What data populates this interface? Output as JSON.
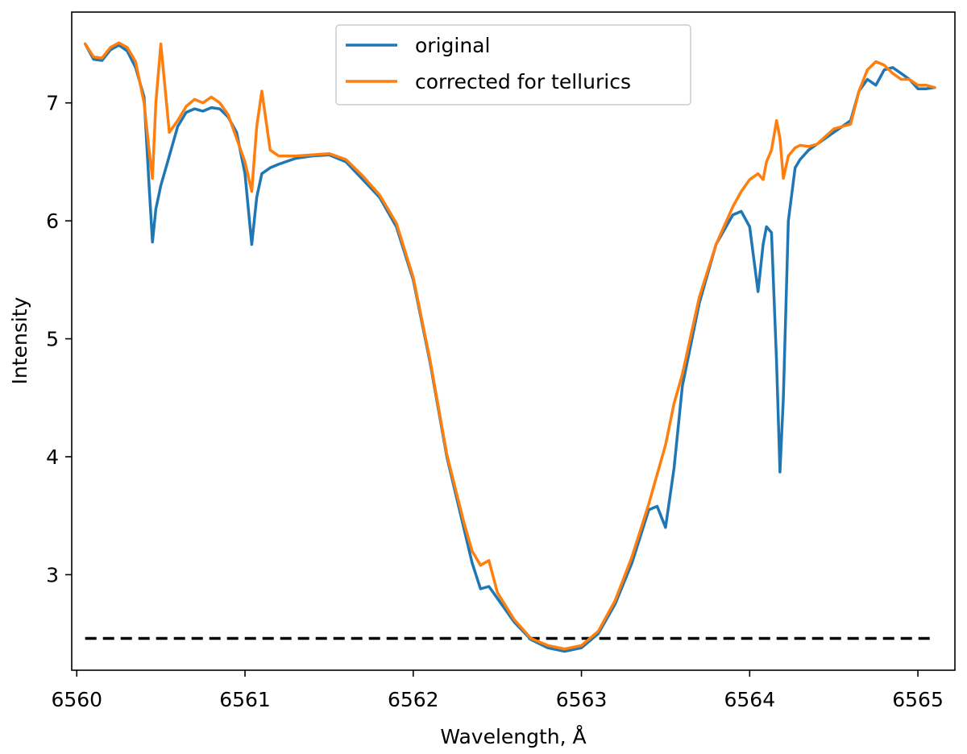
{
  "chart_data": {
    "type": "line",
    "title": "",
    "xlabel": "Wavelength, Å",
    "ylabel": "Intensity",
    "xlim": [
      6559.97,
      6565.22
    ],
    "ylim": [
      2.19,
      7.77
    ],
    "xticks": [
      6560,
      6561,
      6562,
      6563,
      6564,
      6565
    ],
    "yticks": [
      3,
      4,
      5,
      6,
      7
    ],
    "grid": false,
    "legend_placement": "top-center",
    "series": [
      {
        "name": "original",
        "color": "#1f77b4",
        "x": [
          6560.05,
          6560.1,
          6560.15,
          6560.2,
          6560.25,
          6560.3,
          6560.35,
          6560.4,
          6560.43,
          6560.45,
          6560.47,
          6560.5,
          6560.55,
          6560.6,
          6560.65,
          6560.7,
          6560.75,
          6560.8,
          6560.85,
          6560.9,
          6560.95,
          6561.0,
          6561.04,
          6561.07,
          6561.1,
          6561.15,
          6561.2,
          6561.3,
          6561.4,
          6561.5,
          6561.6,
          6561.7,
          6561.8,
          6561.9,
          6562.0,
          6562.1,
          6562.2,
          6562.3,
          6562.35,
          6562.4,
          6562.45,
          6562.5,
          6562.6,
          6562.7,
          6562.8,
          6562.9,
          6563.0,
          6563.1,
          6563.2,
          6563.3,
          6563.4,
          6563.45,
          6563.5,
          6563.55,
          6563.6,
          6563.7,
          6563.8,
          6563.9,
          6563.95,
          6564.0,
          6564.05,
          6564.08,
          6564.1,
          6564.13,
          6564.16,
          6564.18,
          6564.2,
          6564.23,
          6564.27,
          6564.3,
          6564.35,
          6564.4,
          6564.5,
          6564.6,
          6564.65,
          6564.7,
          6564.75,
          6564.8,
          6564.85,
          6564.9,
          6564.95,
          6565.0,
          6565.05,
          6565.1
        ],
        "y": [
          7.5,
          7.37,
          7.36,
          7.45,
          7.49,
          7.44,
          7.3,
          7.05,
          6.3,
          5.82,
          6.1,
          6.3,
          6.55,
          6.8,
          6.92,
          6.95,
          6.93,
          6.96,
          6.95,
          6.88,
          6.75,
          6.4,
          5.8,
          6.2,
          6.4,
          6.45,
          6.48,
          6.53,
          6.55,
          6.56,
          6.5,
          6.35,
          6.2,
          5.95,
          5.5,
          4.8,
          4.0,
          3.4,
          3.1,
          2.88,
          2.9,
          2.8,
          2.6,
          2.45,
          2.38,
          2.35,
          2.38,
          2.5,
          2.75,
          3.1,
          3.55,
          3.58,
          3.4,
          3.9,
          4.6,
          5.3,
          5.8,
          6.05,
          6.08,
          5.95,
          5.4,
          5.8,
          5.95,
          5.9,
          4.8,
          3.87,
          4.5,
          6.0,
          6.45,
          6.52,
          6.6,
          6.65,
          6.75,
          6.85,
          7.1,
          7.2,
          7.15,
          7.28,
          7.3,
          7.25,
          7.2,
          7.12,
          7.12,
          7.13
        ]
      },
      {
        "name": "corrected for tellurics",
        "color": "#ff7f0e",
        "x": [
          6560.05,
          6560.1,
          6560.15,
          6560.2,
          6560.25,
          6560.3,
          6560.35,
          6560.4,
          6560.43,
          6560.45,
          6560.47,
          6560.5,
          6560.55,
          6560.6,
          6560.65,
          6560.7,
          6560.75,
          6560.8,
          6560.85,
          6560.9,
          6560.95,
          6561.0,
          6561.04,
          6561.07,
          6561.1,
          6561.15,
          6561.2,
          6561.3,
          6561.4,
          6561.5,
          6561.6,
          6561.7,
          6561.8,
          6561.9,
          6562.0,
          6562.1,
          6562.2,
          6562.3,
          6562.35,
          6562.4,
          6562.45,
          6562.5,
          6562.6,
          6562.7,
          6562.8,
          6562.9,
          6563.0,
          6563.1,
          6563.2,
          6563.3,
          6563.4,
          6563.45,
          6563.5,
          6563.55,
          6563.6,
          6563.7,
          6563.8,
          6563.9,
          6563.95,
          6564.0,
          6564.05,
          6564.08,
          6564.1,
          6564.13,
          6564.16,
          6564.18,
          6564.2,
          6564.23,
          6564.27,
          6564.3,
          6564.35,
          6564.4,
          6564.5,
          6564.6,
          6564.65,
          6564.7,
          6564.75,
          6564.8,
          6564.85,
          6564.9,
          6564.95,
          6565.0,
          6565.05,
          6565.1
        ],
        "y": [
          7.5,
          7.39,
          7.38,
          7.47,
          7.51,
          7.47,
          7.35,
          7.0,
          6.6,
          6.36,
          7.0,
          7.5,
          6.75,
          6.85,
          6.97,
          7.03,
          7.0,
          7.05,
          7.0,
          6.9,
          6.7,
          6.5,
          6.25,
          6.8,
          7.1,
          6.6,
          6.55,
          6.55,
          6.56,
          6.57,
          6.52,
          6.38,
          6.22,
          5.98,
          5.52,
          4.82,
          4.02,
          3.45,
          3.2,
          3.08,
          3.12,
          2.85,
          2.62,
          2.46,
          2.4,
          2.37,
          2.4,
          2.52,
          2.78,
          3.15,
          3.6,
          3.85,
          4.1,
          4.45,
          4.7,
          5.35,
          5.8,
          6.12,
          6.25,
          6.35,
          6.4,
          6.35,
          6.5,
          6.6,
          6.85,
          6.7,
          6.36,
          6.55,
          6.62,
          6.64,
          6.63,
          6.65,
          6.78,
          6.82,
          7.1,
          7.28,
          7.35,
          7.32,
          7.25,
          7.2,
          7.2,
          7.15,
          7.15,
          7.13
        ]
      }
    ],
    "reference_line": {
      "style": "dashed",
      "color": "#000000",
      "y": 2.46,
      "x": [
        6560.05,
        6565.1
      ]
    }
  }
}
